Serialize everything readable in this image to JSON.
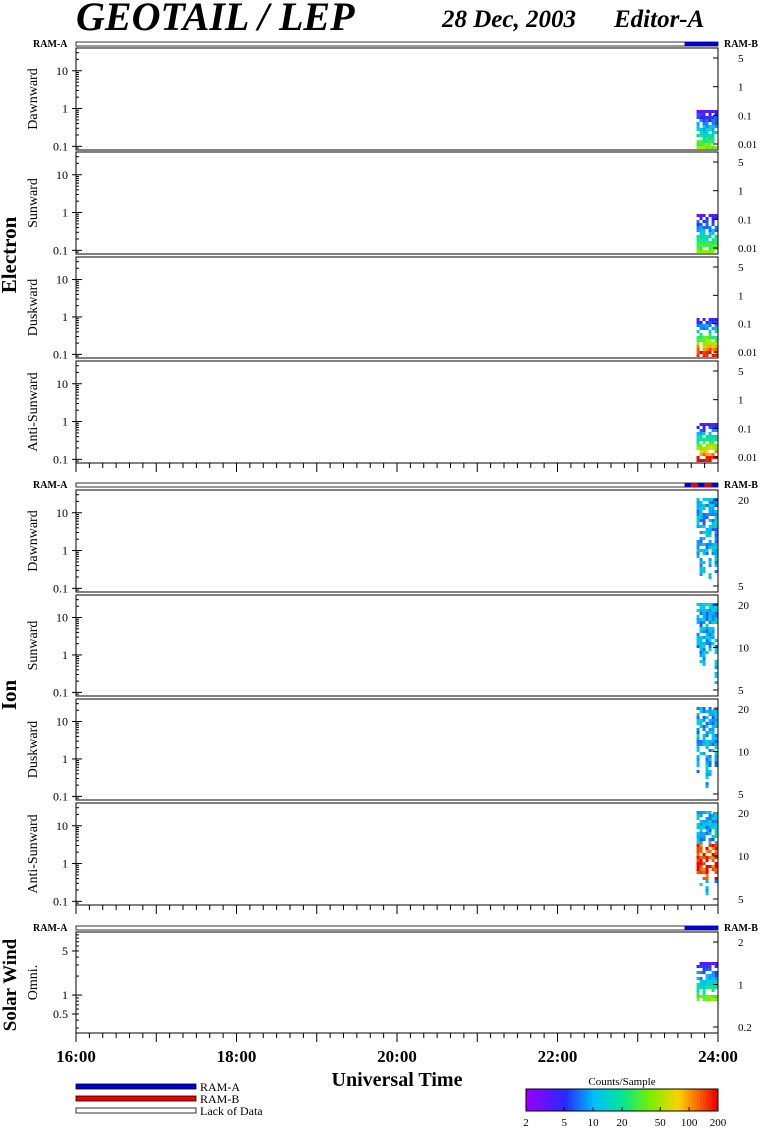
{
  "header": {
    "title": "GEOTAIL / LEP",
    "date": "28 Dec, 2003",
    "editor": "Editor-A"
  },
  "chart_data": {
    "type": "heatmap",
    "x_axis": {
      "label": "Universal Time",
      "range": [
        "16:00",
        "24:00"
      ],
      "ticks": [
        "16:00",
        "18:00",
        "20:00",
        "22:00",
        "24:00"
      ]
    },
    "data_coverage": [
      "23:35",
      "24:00"
    ],
    "groups": [
      {
        "name": "Electron",
        "ram_left": "RAM-A",
        "ram_right": "RAM-B",
        "ram_bar": [
          {
            "mode": "RAM-A",
            "from": "23:35",
            "to": "24:00"
          }
        ],
        "panels": [
          {
            "name": "Dawnward",
            "left_ticks": [
              "10",
              "1",
              "0.1"
            ],
            "right_ticks": [
              "5",
              "1",
              "0.1",
              "0.01"
            ],
            "left_scale": "log",
            "ylim": [
              0.08,
              40
            ]
          },
          {
            "name": "Sunward",
            "left_ticks": [
              "10",
              "1",
              "0.1"
            ],
            "right_ticks": [
              "5",
              "1",
              "0.1",
              "0.01"
            ],
            "left_scale": "log",
            "ylim": [
              0.08,
              40
            ]
          },
          {
            "name": "Duskward",
            "left_ticks": [
              "10",
              "1",
              "0.1"
            ],
            "right_ticks": [
              "5",
              "1",
              "0.1",
              "0.01"
            ],
            "left_scale": "log",
            "ylim": [
              0.08,
              40
            ]
          },
          {
            "name": "Anti-Sunward",
            "left_ticks": [
              "10",
              "1",
              "0.1"
            ],
            "right_ticks": [
              "5",
              "1",
              "0.1",
              "0.01"
            ],
            "left_scale": "log",
            "ylim": [
              0.08,
              40
            ]
          }
        ]
      },
      {
        "name": "Ion",
        "ram_left": "RAM-A",
        "ram_right": "RAM-B",
        "ram_bar": [
          {
            "mode": "RAM-A",
            "from": "23:35",
            "to": "23:40"
          },
          {
            "mode": "RAM-B",
            "from": "23:40",
            "to": "23:45"
          },
          {
            "mode": "RAM-A",
            "from": "23:45",
            "to": "23:50"
          },
          {
            "mode": "RAM-B",
            "from": "23:50",
            "to": "23:55"
          },
          {
            "mode": "RAM-A",
            "from": "23:55",
            "to": "24:00"
          }
        ],
        "panels": [
          {
            "name": "Dawnward",
            "left_ticks": [
              "10",
              "1",
              "0.1"
            ],
            "right_ticks": [
              "20",
              "5"
            ],
            "left_scale": "log",
            "ylim": [
              0.08,
              40
            ]
          },
          {
            "name": "Sunward",
            "left_ticks": [
              "10",
              "1",
              "0.1"
            ],
            "right_ticks": [
              "20",
              "10",
              "5"
            ],
            "left_scale": "log",
            "ylim": [
              0.08,
              40
            ]
          },
          {
            "name": "Duskward",
            "left_ticks": [
              "10",
              "1",
              "0.1"
            ],
            "right_ticks": [
              "20",
              "10",
              "5"
            ],
            "left_scale": "log",
            "ylim": [
              0.08,
              40
            ]
          },
          {
            "name": "Anti-Sunward",
            "left_ticks": [
              "10",
              "1",
              "0.1"
            ],
            "right_ticks": [
              "20",
              "10",
              "5"
            ],
            "left_scale": "log",
            "ylim": [
              0.08,
              40
            ]
          }
        ]
      },
      {
        "name": "Solar Wind",
        "ram_left": "RAM-A",
        "ram_right": "RAM-B",
        "ram_bar": [
          {
            "mode": "RAM-A",
            "from": "23:35",
            "to": "24:00"
          }
        ],
        "panels": [
          {
            "name": "Omni.",
            "left_ticks": [
              "5",
              "1",
              "0.5"
            ],
            "right_ticks": [
              "2",
              "1",
              "0.2"
            ],
            "left_scale": "log",
            "ylim": [
              0.25,
              10
            ]
          }
        ]
      }
    ],
    "legend": {
      "items": [
        {
          "label": "RAM-A",
          "color": "#0000dd"
        },
        {
          "label": "RAM-B",
          "color": "#ee0000"
        },
        {
          "label": "Lack of Data",
          "color": "#ffffff"
        }
      ]
    },
    "colorbar": {
      "title": "Counts/Sample",
      "ticks": [
        "2",
        "5",
        "10",
        "20",
        "50",
        "100",
        "200"
      ],
      "range": [
        2,
        200
      ],
      "scale": "log"
    }
  }
}
